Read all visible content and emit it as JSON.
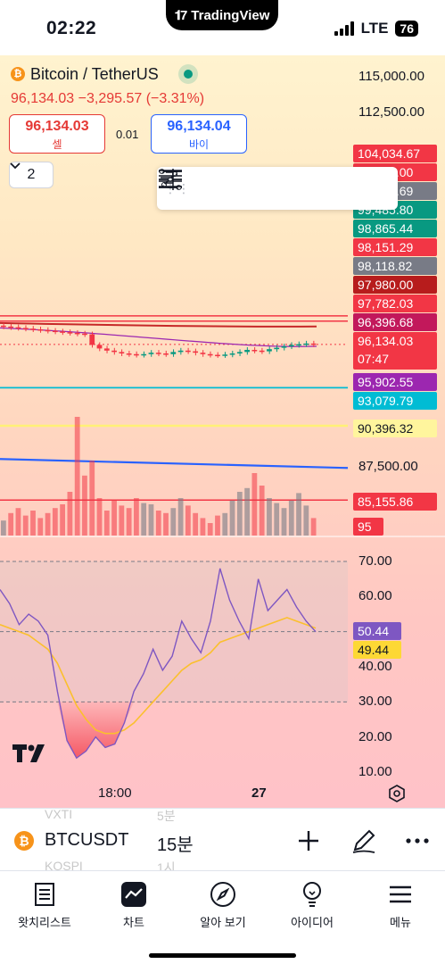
{
  "status": {
    "time": "02:22",
    "app": "TradingView",
    "network": "LTE",
    "battery": "76"
  },
  "symbol": {
    "title": "Bitcoin / TetherUS",
    "last": "96,134.03",
    "change": "−3,295.57",
    "change_pct": "(−3.31%)",
    "coin_glyph": "₿"
  },
  "trade": {
    "sell_price": "96,134.03",
    "sell_label": "셀",
    "spread": "0.01",
    "buy_price": "96,134.04",
    "buy_label": "바이"
  },
  "indicators_count": "2",
  "price_axis": [
    {
      "label": "115,000.00",
      "value": 115000
    },
    {
      "label": "112,500.00",
      "value": 112500
    },
    {
      "label": "87,500.00",
      "value": 87500
    }
  ],
  "price_badges": [
    {
      "label": "104,034.67",
      "color": "#f23645"
    },
    {
      "label": "99,759.00",
      "color": "#f23645"
    },
    {
      "label": "99,209.69",
      "color": "#787b86"
    },
    {
      "label": "99,485.80",
      "color": "#089981"
    },
    {
      "label": "98,865.44",
      "color": "#089981"
    },
    {
      "label": "98,151.29",
      "color": "#f23645"
    },
    {
      "label": "98,118.82",
      "color": "#787b86"
    },
    {
      "label": "97,980.00",
      "color": "#b71c1c"
    },
    {
      "label": "97,782.03",
      "color": "#f23645"
    },
    {
      "label": "96,396.68",
      "color": "#c2185b"
    },
    {
      "label": "96,134.03",
      "sub": "07:47",
      "color": "#f23645"
    },
    {
      "label": "95,902.55",
      "color": "#9c27b0"
    },
    {
      "label": "93,079.79",
      "color": "#00bcd4"
    },
    {
      "label": "90,396.32",
      "color": "#fff59d",
      "text_color": "#131722"
    },
    {
      "label": "85,155.86",
      "color": "#f23645"
    },
    {
      "label": "95",
      "color": "#f23645"
    }
  ],
  "rsi_axis": [
    {
      "label": "70.00",
      "value": 70
    },
    {
      "label": "60.00",
      "value": 60
    },
    {
      "label": "40.00",
      "value": 40
    },
    {
      "label": "30.00",
      "value": 30
    },
    {
      "label": "20.00",
      "value": 20
    },
    {
      "label": "10.00",
      "value": 10
    }
  ],
  "rsi_badges": [
    {
      "label": "50.44",
      "color": "#7e57c2"
    },
    {
      "label": "49.44",
      "color": "#fdd835",
      "text_color": "#131722"
    }
  ],
  "time_axis": [
    "18:00",
    "27"
  ],
  "chart_data": {
    "type": "line",
    "candles_close": [
      97400,
      97350,
      97300,
      97250,
      97200,
      97150,
      97100,
      97050,
      97000,
      96950,
      96900,
      96850,
      96100,
      95850,
      95700,
      95600,
      95500,
      95450,
      95400,
      95450,
      95550,
      95500,
      95450,
      95600,
      95700,
      95650,
      95550,
      95450,
      95400,
      95380,
      95420,
      95500,
      95600,
      95750,
      95700,
      95650,
      95800,
      95900,
      96000,
      96100,
      96150,
      96200,
      96134
    ],
    "volume": [
      12,
      18,
      22,
      16,
      20,
      14,
      18,
      22,
      25,
      35,
      95,
      48,
      60,
      30,
      20,
      28,
      24,
      22,
      30,
      26,
      25,
      20,
      18,
      22,
      30,
      24,
      18,
      14,
      10,
      16,
      18,
      28,
      35,
      38,
      50,
      40,
      30,
      26,
      22,
      28,
      34,
      24,
      14
    ],
    "rsi": [
      62,
      58,
      52,
      55,
      53,
      49,
      33,
      19,
      14,
      16,
      20,
      17,
      18,
      24,
      33,
      38,
      45,
      39,
      43,
      53,
      48,
      44,
      53,
      68,
      59,
      53,
      48,
      65,
      56,
      59,
      62,
      57,
      53,
      50
    ],
    "rsi_ma": [
      52,
      51,
      50,
      49,
      47,
      45,
      41,
      35,
      29,
      25,
      22,
      21,
      21,
      22,
      24,
      27,
      30,
      33,
      36,
      39,
      41,
      42,
      44,
      47,
      48,
      49,
      50,
      51,
      52,
      53,
      54,
      53,
      52,
      51
    ],
    "rsi_bands": [
      70,
      50,
      30
    ]
  },
  "bottom": {
    "symbol": "BTCUSDT",
    "interval": "15분",
    "ghost1": "VXTI",
    "ghost1_b": "5분",
    "ghost2": "KOSPI",
    "ghost2_b": "1시"
  },
  "tabs": [
    {
      "label": "왓치리스트",
      "icon": "watchlist-icon"
    },
    {
      "label": "차트",
      "icon": "chart-icon"
    },
    {
      "label": "알아 보기",
      "icon": "compass-icon"
    },
    {
      "label": "아이디어",
      "icon": "lightbulb-icon"
    },
    {
      "label": "메뉴",
      "icon": "menu-icon"
    }
  ]
}
